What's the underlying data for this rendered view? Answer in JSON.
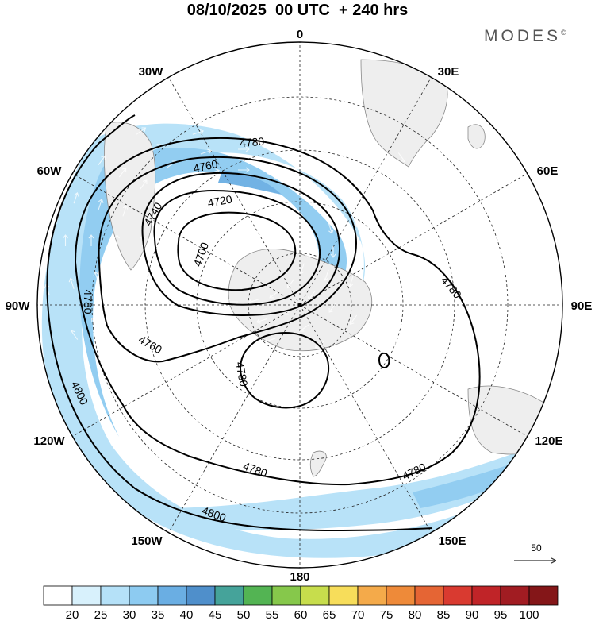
{
  "header": {
    "title": "08/10/2025  00 UTC  + 240 hrs",
    "logo": "MODES"
  },
  "map": {
    "projection": "south polar stereographic",
    "longitude_labels": [
      "0",
      "30E",
      "60E",
      "90E",
      "120E",
      "150E",
      "180",
      "150W",
      "120W",
      "90W",
      "60W",
      "30W"
    ],
    "contour_labels": [
      "4700",
      "4720",
      "4740",
      "4760",
      "4780",
      "4800"
    ],
    "wind_vector_reference": "50"
  },
  "colorbar": {
    "ticks": [
      "20",
      "25",
      "30",
      "35",
      "40",
      "45",
      "50",
      "55",
      "60",
      "65",
      "70",
      "75",
      "80",
      "85",
      "90",
      "95",
      "100"
    ],
    "colors": [
      "#ffffff",
      "#d8f1fc",
      "#b5e1f8",
      "#8dcbf1",
      "#6aaee3",
      "#4f8fcb",
      "#45a39a",
      "#53b453",
      "#86c84b",
      "#c7dd4c",
      "#f7dd5a",
      "#f4aa4a",
      "#ee8a39",
      "#e56534",
      "#d93a30",
      "#c02428",
      "#a11c22",
      "#841618"
    ]
  }
}
